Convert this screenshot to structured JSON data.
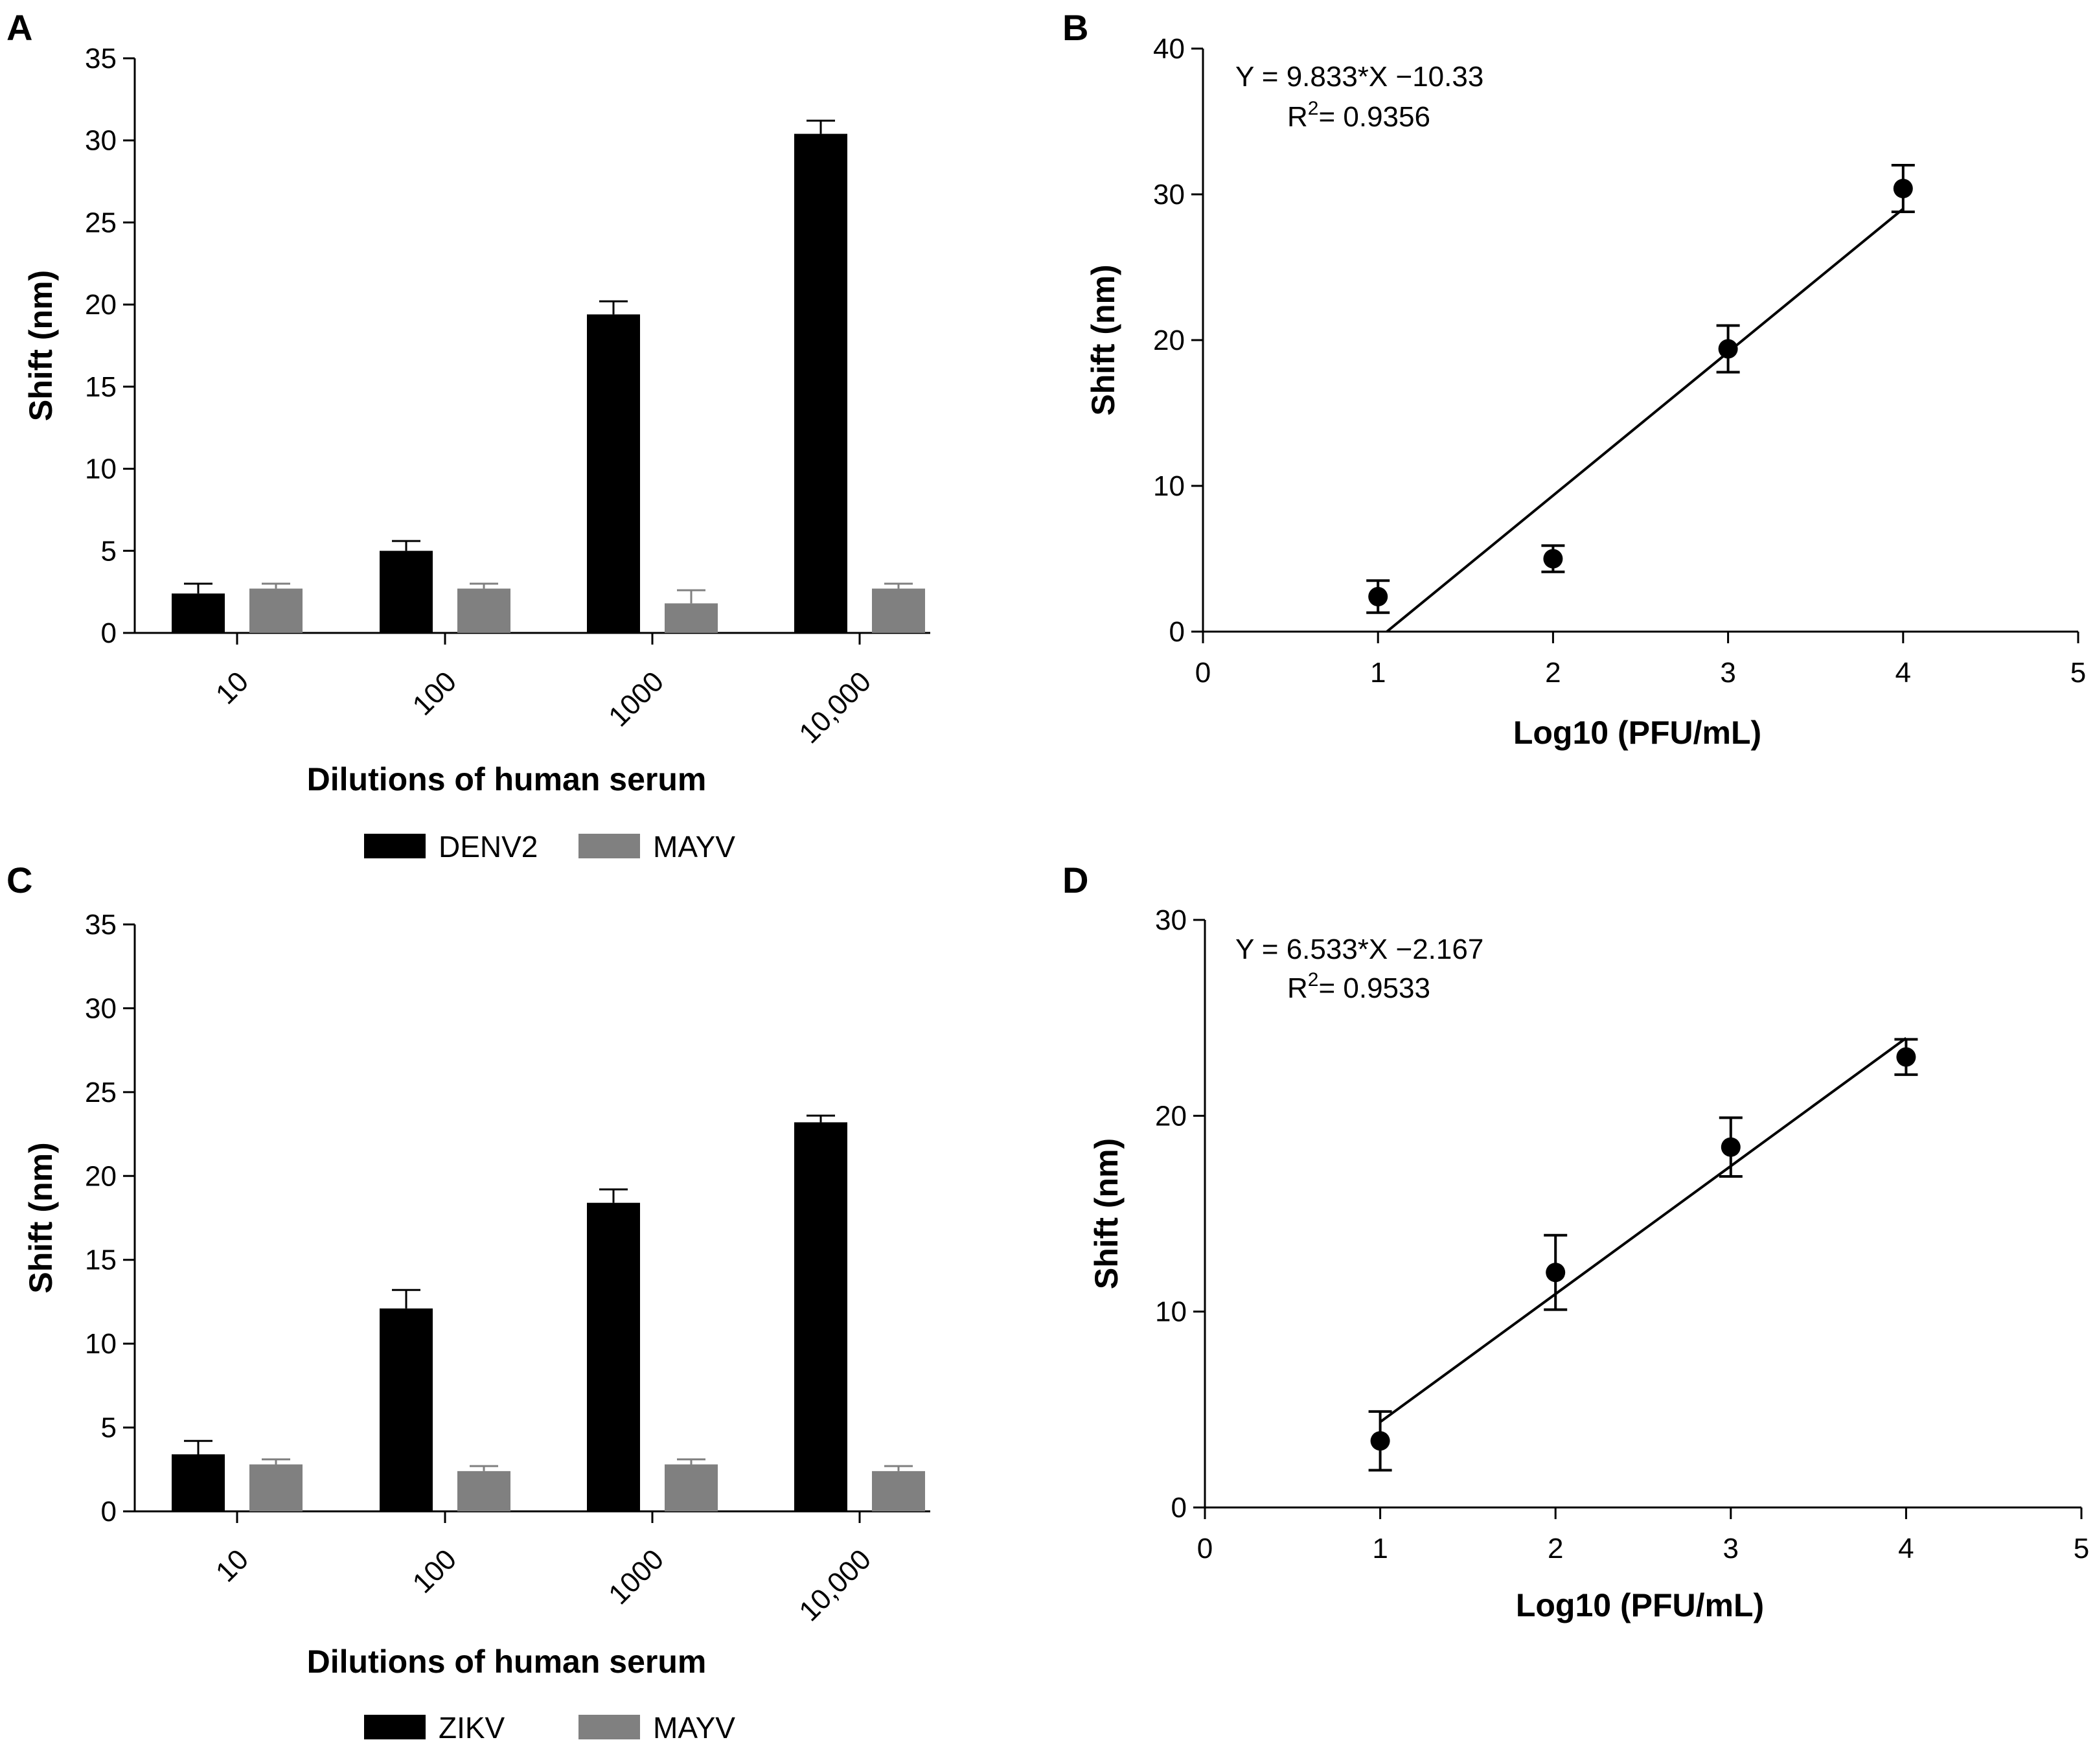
{
  "chart_data": [
    {
      "panel": "A",
      "type": "bar",
      "categories": [
        "10",
        "100",
        "1000",
        "10,000"
      ],
      "series": [
        {
          "name": "DENV2",
          "color": "#000000",
          "values": [
            2.4,
            5.0,
            19.4,
            30.4
          ],
          "errors": [
            0.6,
            0.6,
            0.8,
            0.8
          ]
        },
        {
          "name": "MAYV",
          "color": "#808080",
          "values": [
            2.7,
            2.7,
            1.8,
            2.7
          ],
          "errors": [
            0.3,
            0.3,
            0.8,
            0.3
          ]
        }
      ],
      "xlabel": "Dilutions of human serum",
      "ylabel": "Shift (nm)",
      "ylim": [
        0,
        35
      ],
      "yticks": [
        "0",
        "5",
        "10",
        "15",
        "20",
        "25",
        "30",
        "35"
      ]
    },
    {
      "panel": "B",
      "type": "scatter",
      "points": [
        {
          "x": 1,
          "y": 2.4,
          "err": 1.1
        },
        {
          "x": 2,
          "y": 5.0,
          "err": 0.9
        },
        {
          "x": 3,
          "y": 19.4,
          "err": 1.6
        },
        {
          "x": 4,
          "y": 30.4,
          "err": 1.6
        }
      ],
      "fit": {
        "slope": 9.833,
        "intercept": -10.33,
        "x_range": [
          1.05,
          4
        ]
      },
      "equation": "Y = 9.833*X −10.33",
      "r2_label": "R",
      "r2_sup": "2",
      "r2_value": "= 0.9356",
      "xlabel": "Log10 (PFU/mL)",
      "ylabel": "Shift (nm)",
      "xlim": [
        0,
        5
      ],
      "ylim": [
        0,
        40
      ],
      "xticks": [
        "0",
        "1",
        "2",
        "3",
        "4",
        "5"
      ],
      "yticks": [
        "0",
        "10",
        "20",
        "30",
        "40"
      ]
    },
    {
      "panel": "C",
      "type": "bar",
      "categories": [
        "10",
        "100",
        "1000",
        "10,000"
      ],
      "series": [
        {
          "name": "ZIKV",
          "color": "#000000",
          "values": [
            3.4,
            12.1,
            18.4,
            23.2
          ],
          "errors": [
            0.8,
            1.1,
            0.8,
            0.4
          ]
        },
        {
          "name": "MAYV",
          "color": "#808080",
          "values": [
            2.8,
            2.4,
            2.8,
            2.4
          ],
          "errors": [
            0.3,
            0.3,
            0.3,
            0.3
          ]
        }
      ],
      "xlabel": "Dilutions of human serum",
      "ylabel": "Shift (nm)",
      "ylim": [
        0,
        35
      ],
      "yticks": [
        "0",
        "5",
        "10",
        "15",
        "20",
        "25",
        "30",
        "35"
      ]
    },
    {
      "panel": "D",
      "type": "scatter",
      "points": [
        {
          "x": 1,
          "y": 3.4,
          "err": 1.5
        },
        {
          "x": 2,
          "y": 12.0,
          "err": 1.9
        },
        {
          "x": 3,
          "y": 18.4,
          "err": 1.5
        },
        {
          "x": 4,
          "y": 23.0,
          "err": 0.9
        }
      ],
      "fit": {
        "slope": 6.533,
        "intercept": -2.167,
        "x_range": [
          1,
          4
        ]
      },
      "equation": "Y = 6.533*X −2.167",
      "r2_label": "R",
      "r2_sup": "2",
      "r2_value": "= 0.9533",
      "xlabel": "Log10 (PFU/mL)",
      "ylabel": "Shift (nm)",
      "xlim": [
        0,
        5
      ],
      "ylim": [
        0,
        30
      ],
      "xticks": [
        "0",
        "1",
        "2",
        "3",
        "4",
        "5"
      ],
      "yticks": [
        "0",
        "10",
        "20",
        "30"
      ]
    }
  ]
}
